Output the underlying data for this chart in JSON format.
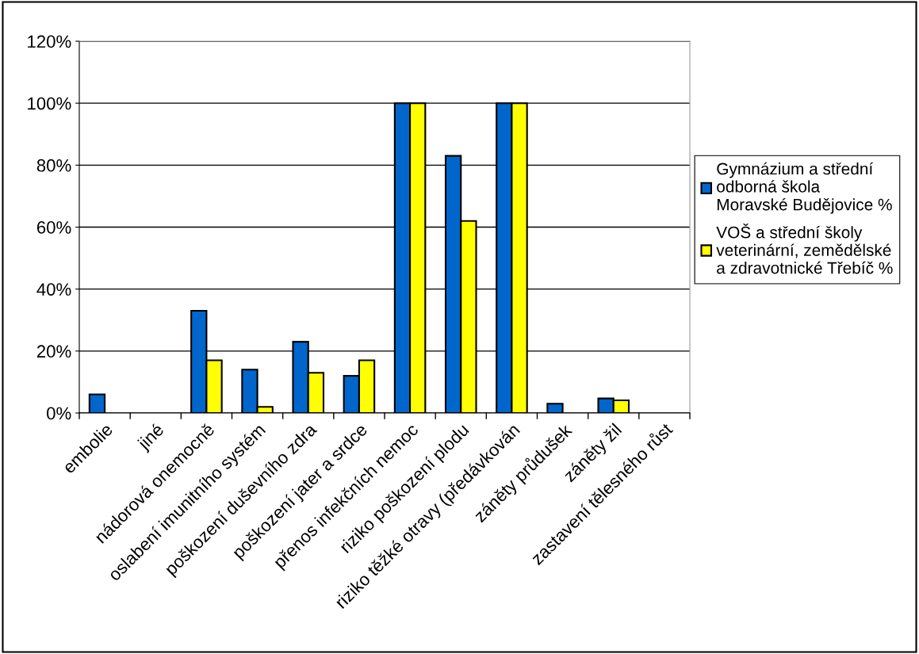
{
  "chart_data": {
    "type": "bar",
    "categories": [
      "embolie",
      "jiné",
      "nádorová onemocně",
      "oslabení imunitního systém",
      "poškození duševního zdra",
      "poškození jater a srdce",
      "přenos infekčních nemoc",
      "riziko poškození plodu",
      "riziko těžké otravy (předávkován",
      "záněty průdušek",
      "záněty žil",
      "zastavení tělesného růst"
    ],
    "series": [
      {
        "name": "Gymnázium a střední\nodborná škola\nMoravské Budějovice %",
        "color": "#0066cc",
        "values": [
          6,
          null,
          33,
          14,
          23,
          12,
          100,
          83,
          100,
          3,
          4.7,
          null
        ]
      },
      {
        "name": "VOŠ a střední školy\nveterinární, zemědělské\na zdravotnické Třebíč %",
        "color": "#ffff00",
        "values": [
          null,
          null,
          17,
          2,
          13,
          17,
          100,
          62,
          100,
          null,
          4.1,
          null
        ]
      }
    ],
    "ylim": [
      0,
      120
    ],
    "yticks": [
      {
        "value": 0,
        "label": "0%"
      },
      {
        "value": 20,
        "label": "20%"
      },
      {
        "value": 40,
        "label": "40%"
      },
      {
        "value": 60,
        "label": "60%"
      },
      {
        "value": 80,
        "label": "80%"
      },
      {
        "value": 100,
        "label": "100%"
      },
      {
        "value": 120,
        "label": "120%"
      }
    ],
    "grid": "y",
    "legend": "right"
  }
}
